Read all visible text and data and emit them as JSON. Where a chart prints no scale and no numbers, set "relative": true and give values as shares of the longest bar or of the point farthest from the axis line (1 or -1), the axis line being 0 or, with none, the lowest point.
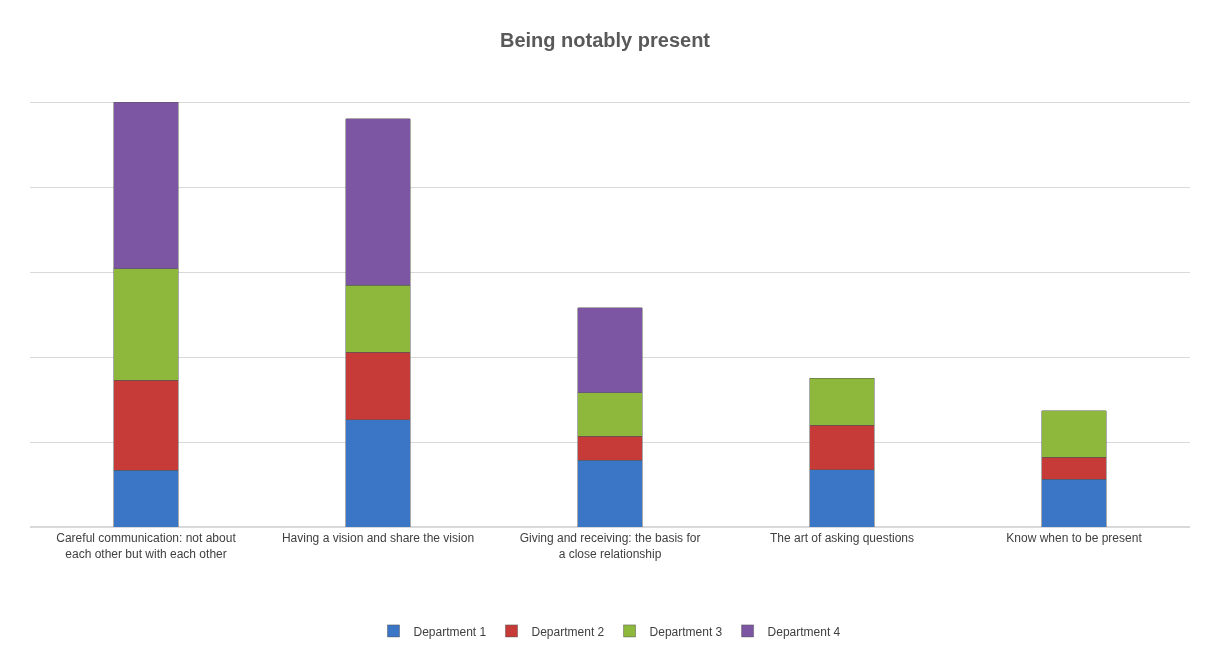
{
  "chart_data": {
    "type": "bar",
    "title": "Being notably present",
    "relative": true,
    "stacked": true,
    "grid": "y",
    "legend": "bottom",
    "categories": [
      "Careful communication: not about each other but with each other",
      "Having a vision and share the vision",
      "Giving and receiving: the basis for a close relationship",
      "The art of asking questions",
      "Know when to be present"
    ],
    "series": [
      {
        "name": "Department 1",
        "color": "#3b76c6",
        "values": [
          0.134,
          0.252,
          0.157,
          0.135,
          0.112
        ]
      },
      {
        "name": "Department 2",
        "color": "#c63a38",
        "values": [
          0.212,
          0.16,
          0.057,
          0.105,
          0.052
        ]
      },
      {
        "name": "Department 3",
        "color": "#8db83b",
        "values": [
          0.262,
          0.157,
          0.102,
          0.11,
          0.11
        ]
      },
      {
        "name": "Department 4",
        "color": "#7d56a3",
        "values": [
          0.392,
          0.392,
          0.2,
          null,
          null
        ]
      }
    ]
  }
}
